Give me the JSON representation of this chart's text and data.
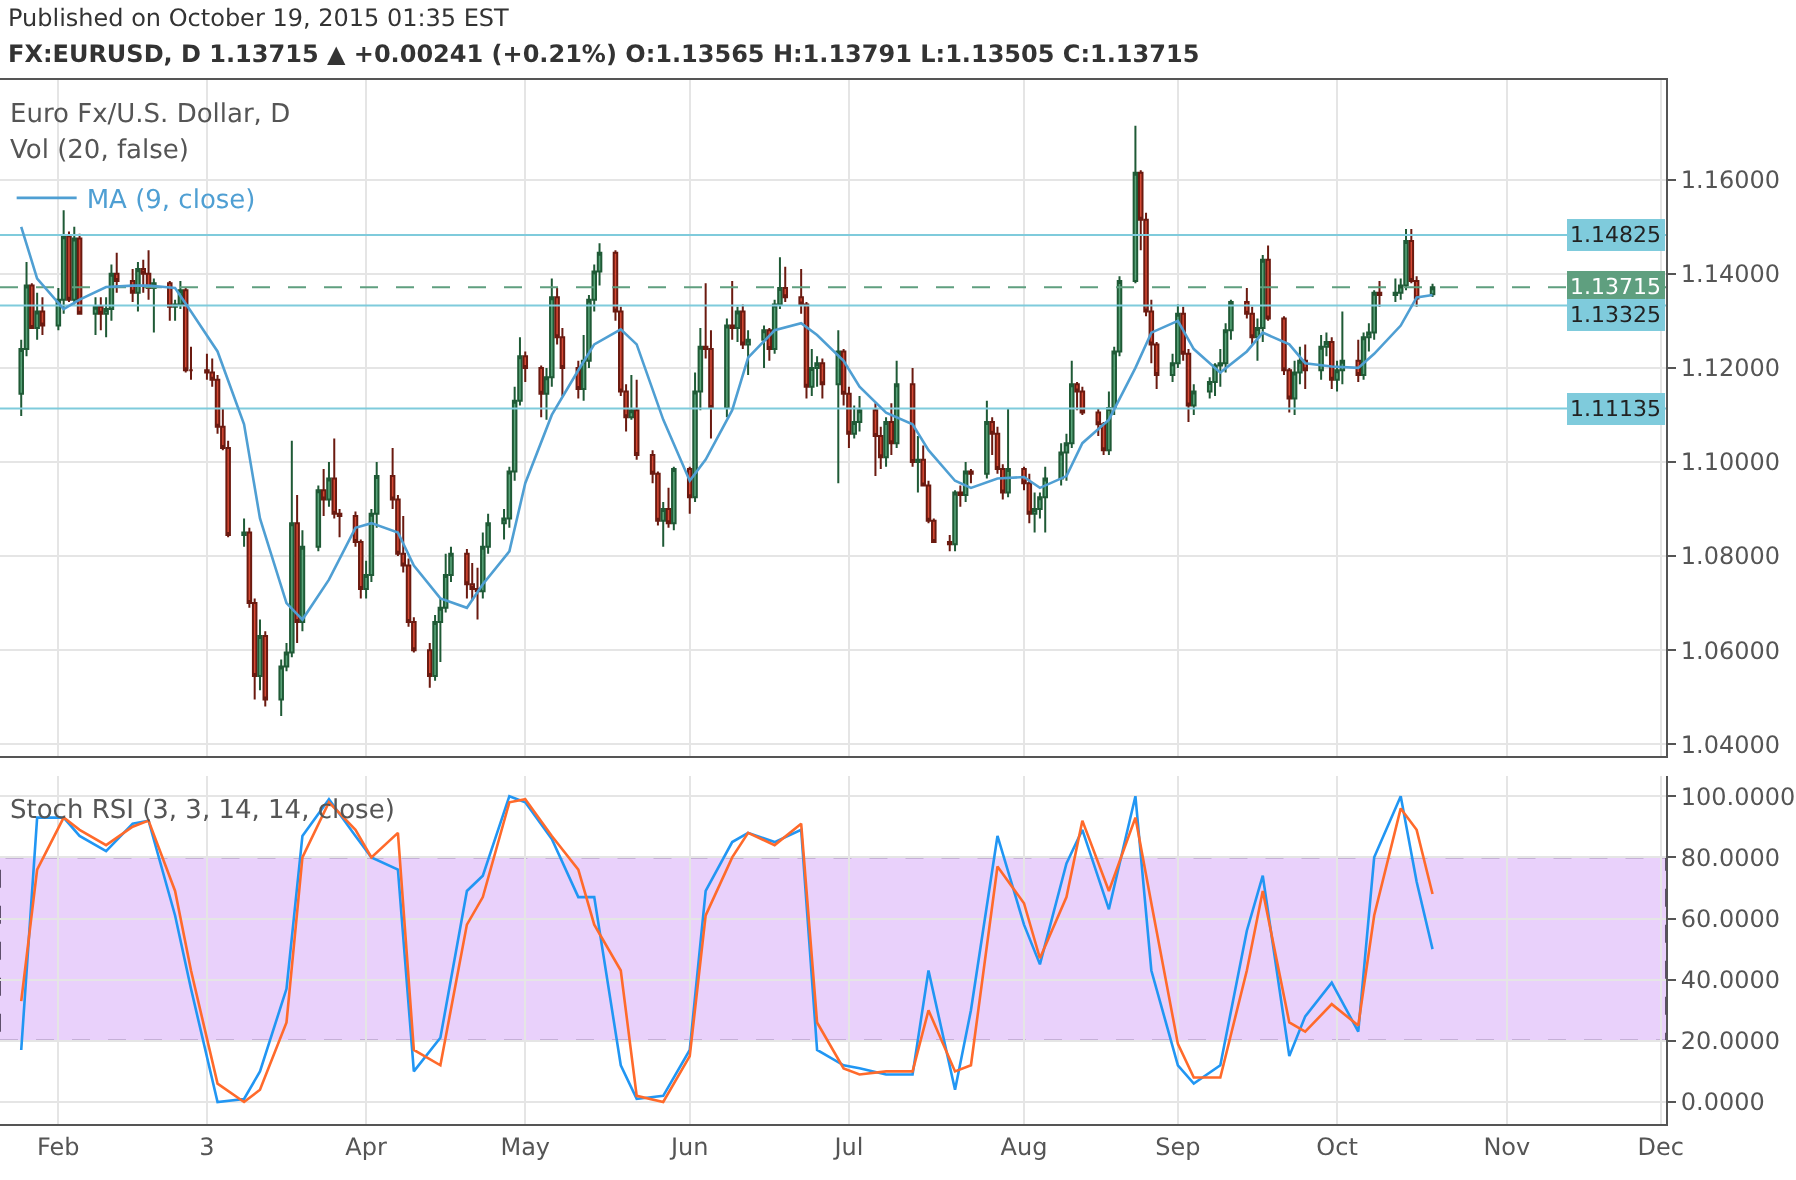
{
  "chart_data": [
    {
      "type": "candlestick",
      "title": "Published on October 19, 2015 01:35 EST",
      "subtitle": "FX:EURUSD, D 1.13715 ▲ +0.00241 (+0.21%) O:1.13565 H:1.13791 L:1.13505 C:1.13715",
      "annotations": [
        "Euro Fx/U.S. Dollar, D",
        "Vol (20, false)"
      ],
      "x": [
        "2015-01-26",
        "2015-01-27",
        "2015-01-28",
        "2015-01-29",
        "2015-01-30",
        "2015-02-02",
        "2015-02-03",
        "2015-02-04",
        "2015-02-05",
        "2015-02-06",
        "2015-02-09",
        "2015-02-10",
        "2015-02-11",
        "2015-02-12",
        "2015-02-13",
        "2015-02-16",
        "2015-02-17",
        "2015-02-18",
        "2015-02-19",
        "2015-02-20",
        "2015-02-23",
        "2015-02-24",
        "2015-02-25",
        "2015-02-26",
        "2015-02-27",
        "2015-03-02",
        "2015-03-03",
        "2015-03-04",
        "2015-03-05",
        "2015-03-06",
        "2015-03-09",
        "2015-03-10",
        "2015-03-11",
        "2015-03-12",
        "2015-03-13",
        "2015-03-16",
        "2015-03-17",
        "2015-03-18",
        "2015-03-19",
        "2015-03-20",
        "2015-03-23",
        "2015-03-24",
        "2015-03-25",
        "2015-03-26",
        "2015-03-27",
        "2015-03-30",
        "2015-03-31",
        "2015-04-01",
        "2015-04-02",
        "2015-04-03",
        "2015-04-06",
        "2015-04-07",
        "2015-04-08",
        "2015-04-09",
        "2015-04-10",
        "2015-04-13",
        "2015-04-14",
        "2015-04-15",
        "2015-04-16",
        "2015-04-17",
        "2015-04-20",
        "2015-04-21",
        "2015-04-22",
        "2015-04-23",
        "2015-04-24",
        "2015-04-27",
        "2015-04-28",
        "2015-04-29",
        "2015-04-30",
        "2015-05-01",
        "2015-05-04",
        "2015-05-05",
        "2015-05-06",
        "2015-05-07",
        "2015-05-08",
        "2015-05-11",
        "2015-05-12",
        "2015-05-13",
        "2015-05-14",
        "2015-05-15",
        "2015-05-18",
        "2015-05-19",
        "2015-05-20",
        "2015-05-21",
        "2015-05-22",
        "2015-05-25",
        "2015-05-26",
        "2015-05-27",
        "2015-05-28",
        "2015-05-29",
        "2015-06-01",
        "2015-06-02",
        "2015-06-03",
        "2015-06-04",
        "2015-06-05",
        "2015-06-08",
        "2015-06-09",
        "2015-06-10",
        "2015-06-11",
        "2015-06-12",
        "2015-06-15",
        "2015-06-16",
        "2015-06-17",
        "2015-06-18",
        "2015-06-19",
        "2015-06-22",
        "2015-06-23",
        "2015-06-24",
        "2015-06-25",
        "2015-06-26",
        "2015-06-29",
        "2015-06-30",
        "2015-07-01",
        "2015-07-02",
        "2015-07-03",
        "2015-07-06",
        "2015-07-07",
        "2015-07-08",
        "2015-07-09",
        "2015-07-10",
        "2015-07-13",
        "2015-07-14",
        "2015-07-15",
        "2015-07-16",
        "2015-07-17",
        "2015-07-20",
        "2015-07-21",
        "2015-07-22",
        "2015-07-23",
        "2015-07-24",
        "2015-07-27",
        "2015-07-28",
        "2015-07-29",
        "2015-07-30",
        "2015-07-31",
        "2015-08-03",
        "2015-08-04",
        "2015-08-05",
        "2015-08-06",
        "2015-08-07",
        "2015-08-10",
        "2015-08-11",
        "2015-08-12",
        "2015-08-13",
        "2015-08-14",
        "2015-08-17",
        "2015-08-18",
        "2015-08-19",
        "2015-08-20",
        "2015-08-21",
        "2015-08-24",
        "2015-08-25",
        "2015-08-26",
        "2015-08-27",
        "2015-08-28",
        "2015-08-31",
        "2015-09-01",
        "2015-09-02",
        "2015-09-03",
        "2015-09-04",
        "2015-09-07",
        "2015-09-08",
        "2015-09-09",
        "2015-09-10",
        "2015-09-11",
        "2015-09-14",
        "2015-09-15",
        "2015-09-16",
        "2015-09-17",
        "2015-09-18",
        "2015-09-21",
        "2015-09-22",
        "2015-09-23",
        "2015-09-24",
        "2015-09-25",
        "2015-09-28",
        "2015-09-29",
        "2015-09-30",
        "2015-10-01",
        "2015-10-02",
        "2015-10-05",
        "2015-10-06",
        "2015-10-07",
        "2015-10-08",
        "2015-10-09",
        "2015-10-12",
        "2015-10-13",
        "2015-10-14",
        "2015-10-15",
        "2015-10-16",
        "2015-10-19"
      ],
      "ohlc": [
        [
          1.1145,
          1.126,
          1.1098,
          1.124
        ],
        [
          1.124,
          1.1425,
          1.1225,
          1.1375
        ],
        [
          1.1375,
          1.138,
          1.1285,
          1.1285
        ],
        [
          1.1285,
          1.136,
          1.126,
          1.132
        ],
        [
          1.132,
          1.135,
          1.127,
          1.129
        ],
        [
          1.129,
          1.137,
          1.128,
          1.1345
        ],
        [
          1.1345,
          1.1535,
          1.1315,
          1.148
        ],
        [
          1.148,
          1.149,
          1.134,
          1.1345
        ],
        [
          1.1345,
          1.15,
          1.1335,
          1.1475
        ],
        [
          1.1475,
          1.1485,
          1.1315,
          1.1315
        ],
        [
          1.1315,
          1.135,
          1.127,
          1.133
        ],
        [
          1.133,
          1.135,
          1.128,
          1.1315
        ],
        [
          1.1315,
          1.135,
          1.1265,
          1.1325
        ],
        [
          1.1325,
          1.142,
          1.13,
          1.14
        ],
        [
          1.14,
          1.1445,
          1.136,
          1.1385
        ],
        [
          1.1385,
          1.141,
          1.134,
          1.136
        ],
        [
          1.136,
          1.1425,
          1.132,
          1.141
        ],
        [
          1.141,
          1.143,
          1.136,
          1.14
        ],
        [
          1.14,
          1.145,
          1.1345,
          1.137
        ],
        [
          1.137,
          1.139,
          1.1275,
          1.138
        ],
        [
          1.138,
          1.1385,
          1.13,
          1.133
        ],
        [
          1.133,
          1.1345,
          1.13,
          1.1335
        ],
        [
          1.1335,
          1.1385,
          1.1325,
          1.1365
        ],
        [
          1.1365,
          1.137,
          1.119,
          1.1195
        ],
        [
          1.1195,
          1.1245,
          1.1175,
          1.1195
        ],
        [
          1.1195,
          1.123,
          1.1175,
          1.119
        ],
        [
          1.119,
          1.122,
          1.116,
          1.1175
        ],
        [
          1.1175,
          1.1185,
          1.106,
          1.1075
        ],
        [
          1.1075,
          1.1115,
          1.1025,
          1.103
        ],
        [
          1.103,
          1.1045,
          1.084,
          1.0845
        ],
        [
          1.0845,
          1.088,
          1.082,
          1.085
        ],
        [
          1.085,
          1.086,
          1.069,
          1.07
        ],
        [
          1.07,
          1.071,
          1.0495,
          1.0545
        ],
        [
          1.0545,
          1.0665,
          1.0515,
          1.063
        ],
        [
          1.063,
          1.064,
          1.048,
          1.0495
        ],
        [
          1.0495,
          1.058,
          1.046,
          1.0565
        ],
        [
          1.0565,
          1.0615,
          1.0555,
          1.0595
        ],
        [
          1.0595,
          1.1045,
          1.0585,
          1.087
        ],
        [
          1.087,
          1.093,
          1.0615,
          1.066
        ],
        [
          1.066,
          1.0855,
          1.064,
          1.082
        ],
        [
          1.082,
          1.095,
          1.081,
          1.094
        ],
        [
          1.094,
          1.0985,
          1.0885,
          1.092
        ],
        [
          1.092,
          1.1,
          1.0905,
          1.0965
        ],
        [
          1.0965,
          1.105,
          1.088,
          1.089
        ],
        [
          1.089,
          1.09,
          1.084,
          1.0885
        ],
        [
          1.0885,
          1.0895,
          1.082,
          1.083
        ],
        [
          1.083,
          1.0835,
          1.071,
          1.073
        ],
        [
          1.073,
          1.079,
          1.071,
          1.076
        ],
        [
          1.076,
          1.09,
          1.0745,
          1.089
        ],
        [
          1.089,
          1.1,
          1.086,
          1.097
        ],
        [
          1.097,
          1.103,
          1.09,
          1.092
        ],
        [
          1.092,
          1.093,
          1.08,
          1.0805
        ],
        [
          1.0805,
          1.0885,
          1.0765,
          1.078
        ],
        [
          1.078,
          1.0795,
          1.065,
          1.066
        ],
        [
          1.066,
          1.067,
          1.0595,
          1.06
        ],
        [
          1.06,
          1.0615,
          1.052,
          1.0545
        ],
        [
          1.0545,
          1.0675,
          1.0535,
          1.066
        ],
        [
          1.066,
          1.071,
          1.0575,
          1.069
        ],
        [
          1.069,
          1.0805,
          1.068,
          1.076
        ],
        [
          1.076,
          1.082,
          1.0745,
          1.0805
        ],
        [
          1.0805,
          1.0815,
          1.071,
          1.074
        ],
        [
          1.074,
          1.0785,
          1.0705,
          1.073
        ],
        [
          1.073,
          1.0775,
          1.0665,
          1.0725
        ],
        [
          1.0725,
          1.085,
          1.071,
          1.082
        ],
        [
          1.082,
          1.089,
          1.0805,
          1.087
        ],
        [
          1.087,
          1.09,
          1.0835,
          1.088
        ],
        [
          1.088,
          1.099,
          1.086,
          1.098
        ],
        [
          1.098,
          1.116,
          1.096,
          1.113
        ],
        [
          1.113,
          1.1265,
          1.112,
          1.1225
        ],
        [
          1.1225,
          1.1235,
          1.117,
          1.12
        ],
        [
          1.12,
          1.1205,
          1.1095,
          1.1145
        ],
        [
          1.1145,
          1.12,
          1.109,
          1.118
        ],
        [
          1.118,
          1.139,
          1.116,
          1.135
        ],
        [
          1.135,
          1.137,
          1.125,
          1.1265
        ],
        [
          1.1265,
          1.1285,
          1.114,
          1.12
        ],
        [
          1.12,
          1.1215,
          1.1135,
          1.1155
        ],
        [
          1.1155,
          1.127,
          1.113,
          1.1215
        ],
        [
          1.1215,
          1.1355,
          1.12,
          1.1345
        ],
        [
          1.1345,
          1.142,
          1.132,
          1.1405
        ],
        [
          1.1405,
          1.1465,
          1.1375,
          1.1445
        ],
        [
          1.1445,
          1.145,
          1.13,
          1.132
        ],
        [
          1.132,
          1.133,
          1.114,
          1.115
        ],
        [
          1.115,
          1.1165,
          1.1065,
          1.1095
        ],
        [
          1.1095,
          1.1185,
          1.109,
          1.111
        ],
        [
          1.111,
          1.1175,
          1.1005,
          1.1015
        ],
        [
          1.1015,
          1.1025,
          1.0955,
          1.0975
        ],
        [
          1.0975,
          1.098,
          1.0865,
          1.0875
        ],
        [
          1.0875,
          1.0915,
          1.082,
          1.09
        ],
        [
          1.09,
          1.0945,
          1.086,
          1.087
        ],
        [
          1.087,
          1.099,
          1.0855,
          1.0985
        ],
        [
          1.0985,
          1.099,
          1.089,
          1.0925
        ],
        [
          1.0925,
          1.119,
          1.0915,
          1.115
        ],
        [
          1.115,
          1.1285,
          1.111,
          1.1245
        ],
        [
          1.1245,
          1.138,
          1.122,
          1.124
        ],
        [
          1.124,
          1.128,
          1.105,
          1.1115
        ],
        [
          1.1115,
          1.1305,
          1.1095,
          1.129
        ],
        [
          1.129,
          1.1385,
          1.126,
          1.1285
        ],
        [
          1.1285,
          1.133,
          1.1255,
          1.132
        ],
        [
          1.132,
          1.1335,
          1.124,
          1.125
        ],
        [
          1.125,
          1.128,
          1.1185,
          1.126
        ],
        [
          1.126,
          1.129,
          1.12,
          1.128
        ],
        [
          1.128,
          1.1285,
          1.1215,
          1.124
        ],
        [
          1.124,
          1.1345,
          1.123,
          1.1335
        ],
        [
          1.1335,
          1.1435,
          1.1325,
          1.137
        ],
        [
          1.137,
          1.1415,
          1.134,
          1.135
        ],
        [
          1.135,
          1.141,
          1.1315,
          1.1335
        ],
        [
          1.1335,
          1.134,
          1.1135,
          1.116
        ],
        [
          1.116,
          1.124,
          1.114,
          1.12
        ],
        [
          1.12,
          1.1225,
          1.116,
          1.121
        ],
        [
          1.121,
          1.122,
          1.1135,
          1.1165
        ],
        [
          1.1165,
          1.128,
          1.0955,
          1.1235
        ],
        [
          1.1235,
          1.124,
          1.112,
          1.1145
        ],
        [
          1.1145,
          1.116,
          1.103,
          1.106
        ],
        [
          1.106,
          1.112,
          1.105,
          1.1085
        ],
        [
          1.1085,
          1.114,
          1.1065,
          1.111
        ],
        [
          1.111,
          1.1125,
          1.097,
          1.1055
        ],
        [
          1.1055,
          1.1075,
          1.0985,
          1.101
        ],
        [
          1.101,
          1.1095,
          1.099,
          1.1085
        ],
        [
          1.1085,
          1.1125,
          1.1015,
          1.104
        ],
        [
          1.104,
          1.1215,
          1.103,
          1.1165
        ],
        [
          1.1165,
          1.12,
          1.099,
          1.1
        ],
        [
          1.1,
          1.1055,
          1.0935,
          1.1005
        ],
        [
          1.1005,
          1.1035,
          1.095,
          1.095
        ],
        [
          1.095,
          1.096,
          1.087,
          1.0875
        ],
        [
          1.0875,
          1.088,
          1.083,
          1.083
        ],
        [
          1.083,
          1.0845,
          1.081,
          1.0825
        ],
        [
          1.0825,
          1.094,
          1.081,
          1.0935
        ],
        [
          1.0935,
          1.095,
          1.0905,
          1.093
        ],
        [
          1.093,
          1.1,
          1.0915,
          1.098
        ],
        [
          1.098,
          1.0985,
          1.0955,
          1.0975
        ],
        [
          1.0975,
          1.113,
          1.0965,
          1.1085
        ],
        [
          1.1085,
          1.1095,
          1.1015,
          1.106
        ],
        [
          1.106,
          1.1075,
          1.0975,
          1.0985
        ],
        [
          1.0985,
          1.0995,
          1.092,
          1.0935
        ],
        [
          1.0935,
          1.1115,
          1.0925,
          1.0985
        ],
        [
          1.0985,
          1.099,
          1.094,
          1.0955
        ],
        [
          1.0955,
          1.0975,
          1.087,
          1.089
        ],
        [
          1.089,
          1.0935,
          1.085,
          1.09
        ],
        [
          1.09,
          1.0935,
          1.088,
          1.0925
        ],
        [
          1.0925,
          1.099,
          1.085,
          1.0965
        ],
        [
          1.0965,
          1.104,
          1.095,
          1.102
        ],
        [
          1.102,
          1.106,
          1.096,
          1.104
        ],
        [
          1.104,
          1.1215,
          1.103,
          1.1165
        ],
        [
          1.1165,
          1.117,
          1.111,
          1.115
        ],
        [
          1.115,
          1.116,
          1.11,
          1.1105
        ],
        [
          1.1105,
          1.1115,
          1.1055,
          1.108
        ],
        [
          1.108,
          1.1085,
          1.1015,
          1.1025
        ],
        [
          1.1025,
          1.115,
          1.1015,
          1.1115
        ],
        [
          1.1115,
          1.1245,
          1.11,
          1.1235
        ],
        [
          1.1235,
          1.1395,
          1.1225,
          1.1385
        ],
        [
          1.1385,
          1.1715,
          1.138,
          1.1615
        ],
        [
          1.1615,
          1.162,
          1.145,
          1.1515
        ],
        [
          1.1515,
          1.153,
          1.131,
          1.132
        ],
        [
          1.132,
          1.1345,
          1.121,
          1.125
        ],
        [
          1.125,
          1.1255,
          1.1155,
          1.1185
        ],
        [
          1.1185,
          1.123,
          1.117,
          1.121
        ],
        [
          1.121,
          1.1335,
          1.12,
          1.1315
        ],
        [
          1.1315,
          1.133,
          1.1215,
          1.123
        ],
        [
          1.123,
          1.124,
          1.1085,
          1.112
        ],
        [
          1.112,
          1.1165,
          1.11,
          1.115
        ],
        [
          1.115,
          1.118,
          1.1135,
          1.117
        ],
        [
          1.117,
          1.121,
          1.114,
          1.1205
        ],
        [
          1.1205,
          1.124,
          1.116,
          1.121
        ],
        [
          1.121,
          1.1295,
          1.119,
          1.128
        ],
        [
          1.128,
          1.1345,
          1.126,
          1.134
        ],
        [
          1.134,
          1.137,
          1.1305,
          1.1315
        ],
        [
          1.1315,
          1.133,
          1.125,
          1.1265
        ],
        [
          1.1265,
          1.1305,
          1.1215,
          1.1285
        ],
        [
          1.1285,
          1.144,
          1.1255,
          1.143
        ],
        [
          1.143,
          1.146,
          1.13,
          1.1305
        ],
        [
          1.1305,
          1.131,
          1.1185,
          1.1195
        ],
        [
          1.1195,
          1.12,
          1.1105,
          1.1135
        ],
        [
          1.1135,
          1.1215,
          1.11,
          1.119
        ],
        [
          1.119,
          1.1245,
          1.1165,
          1.1215
        ],
        [
          1.1215,
          1.125,
          1.1155,
          1.1195
        ],
        [
          1.1195,
          1.127,
          1.1175,
          1.1245
        ],
        [
          1.1245,
          1.1275,
          1.1225,
          1.1255
        ],
        [
          1.1255,
          1.1265,
          1.1155,
          1.1175
        ],
        [
          1.1175,
          1.1215,
          1.115,
          1.1195
        ],
        [
          1.1195,
          1.132,
          1.1165,
          1.1215
        ],
        [
          1.1215,
          1.126,
          1.117,
          1.1185
        ],
        [
          1.1185,
          1.1275,
          1.1175,
          1.1265
        ],
        [
          1.1265,
          1.1295,
          1.1235,
          1.1275
        ],
        [
          1.1275,
          1.1365,
          1.126,
          1.136
        ],
        [
          1.136,
          1.1385,
          1.133,
          1.1355
        ],
        [
          1.1355,
          1.139,
          1.134,
          1.136
        ],
        [
          1.136,
          1.139,
          1.1345,
          1.1375
        ],
        [
          1.1375,
          1.1495,
          1.1365,
          1.147
        ],
        [
          1.147,
          1.1495,
          1.138,
          1.1385
        ],
        [
          1.1385,
          1.1395,
          1.133,
          1.13474
        ],
        [
          1.13565,
          1.13791,
          1.13505,
          1.13715
        ]
      ],
      "series": [
        {
          "type": "line",
          "name": "MA (9, close)",
          "color": "#4f9fd3",
          "x": [
            "2015-01-26",
            "2015-01-29",
            "2015-02-03",
            "2015-02-06",
            "2015-02-11",
            "2015-02-16",
            "2015-02-19",
            "2015-02-24",
            "2015-02-27",
            "2015-03-04",
            "2015-03-09",
            "2015-03-12",
            "2015-03-17",
            "2015-03-20",
            "2015-03-25",
            "2015-03-30",
            "2015-04-02",
            "2015-04-07",
            "2015-04-10",
            "2015-04-15",
            "2015-04-20",
            "2015-04-23",
            "2015-04-28",
            "2015-05-01",
            "2015-05-06",
            "2015-05-11",
            "2015-05-14",
            "2015-05-19",
            "2015-05-22",
            "2015-05-27",
            "2015-06-01",
            "2015-06-04",
            "2015-06-09",
            "2015-06-12",
            "2015-06-17",
            "2015-06-22",
            "2015-06-25",
            "2015-06-30",
            "2015-07-03",
            "2015-07-08",
            "2015-07-13",
            "2015-07-16",
            "2015-07-21",
            "2015-07-24",
            "2015-07-29",
            "2015-08-03",
            "2015-08-06",
            "2015-08-11",
            "2015-08-14",
            "2015-08-19",
            "2015-08-24",
            "2015-08-27",
            "2015-09-01",
            "2015-09-04",
            "2015-09-09",
            "2015-09-14",
            "2015-09-17",
            "2015-09-22",
            "2015-09-25",
            "2015-09-30",
            "2015-10-05",
            "2015-10-08",
            "2015-10-13",
            "2015-10-16",
            "2015-10-19"
          ],
          "values": [
            1.15,
            1.139,
            1.1325,
            1.1345,
            1.1372,
            1.1375,
            1.1375,
            1.137,
            1.132,
            1.1235,
            1.108,
            1.088,
            1.07,
            1.0665,
            1.075,
            1.086,
            1.087,
            1.085,
            1.078,
            1.071,
            1.069,
            1.074,
            1.081,
            1.0955,
            1.11,
            1.1195,
            1.125,
            1.1282,
            1.125,
            1.109,
            1.096,
            1.1005,
            1.111,
            1.1222,
            1.128,
            1.1295,
            1.127,
            1.1215,
            1.116,
            1.1105,
            1.108,
            1.1025,
            1.096,
            1.0945,
            1.0965,
            1.0968,
            1.0945,
            1.097,
            1.104,
            1.109,
            1.12,
            1.1275,
            1.13,
            1.124,
            1.119,
            1.1235,
            1.1275,
            1.125,
            1.121,
            1.1203,
            1.12,
            1.123,
            1.129,
            1.135,
            1.1355
          ]
        }
      ],
      "xlim": [
        "2015-01-22",
        "2015-12-02"
      ],
      "xticks": [
        {
          "value": "2015-02-02",
          "label": null
        },
        {
          "value": "2015-03-02",
          "label": null
        },
        {
          "value": "2015-04-01",
          "label": null
        },
        {
          "value": "2015-05-01",
          "label": null
        },
        {
          "value": "2015-06-01",
          "label": null
        },
        {
          "value": "2015-07-01",
          "label": null
        },
        {
          "value": "2015-08-03",
          "label": null
        },
        {
          "value": "2015-09-01",
          "label": null
        },
        {
          "value": "2015-10-01",
          "label": null
        },
        {
          "value": "2015-11-02",
          "label": null
        },
        {
          "value": "2015-12-01",
          "label": null
        }
      ],
      "ylim": [
        1.0375,
        1.1812
      ],
      "yticks": [
        {
          "value": 1.04,
          "label": "1.04000"
        },
        {
          "value": 1.06,
          "label": "1.06000"
        },
        {
          "value": 1.08,
          "label": "1.08000"
        },
        {
          "value": 1.1,
          "label": "1.10000"
        },
        {
          "value": 1.12,
          "label": "1.12000"
        },
        {
          "value": 1.14,
          "label": "1.14000"
        },
        {
          "value": 1.16,
          "label": "1.16000"
        }
      ],
      "ref_lines": [
        {
          "axis": "y",
          "value": 1.14825,
          "label": "1.14825",
          "color": "#7fcbdc",
          "line_style": "solid"
        },
        {
          "axis": "y",
          "value": 1.13715,
          "label": "1.13715",
          "color": "#5f9f7f",
          "line_style": "dashed"
        },
        {
          "axis": "y",
          "value": 1.13325,
          "label": "1.13325",
          "color": "#7fcbdc",
          "line_style": "solid"
        },
        {
          "axis": "y",
          "value": 1.11135,
          "label": "1.11135",
          "color": "#7fcbdc",
          "line_style": "solid"
        }
      ],
      "grid": true,
      "legend": "top left",
      "tick_labels": "y"
    },
    {
      "type": "line",
      "title": "Stoch RSI (3, 3, 14, 14, close)",
      "x": [
        "2015-01-26",
        "2015-01-29",
        "2015-02-03",
        "2015-02-06",
        "2015-02-11",
        "2015-02-16",
        "2015-02-19",
        "2015-02-24",
        "2015-02-27",
        "2015-03-04",
        "2015-03-09",
        "2015-03-12",
        "2015-03-17",
        "2015-03-20",
        "2015-03-25",
        "2015-03-30",
        "2015-04-02",
        "2015-04-07",
        "2015-04-10",
        "2015-04-15",
        "2015-04-20",
        "2015-04-23",
        "2015-04-28",
        "2015-05-01",
        "2015-05-06",
        "2015-05-11",
        "2015-05-14",
        "2015-05-19",
        "2015-05-22",
        "2015-05-27",
        "2015-06-01",
        "2015-06-04",
        "2015-06-09",
        "2015-06-12",
        "2015-06-17",
        "2015-06-22",
        "2015-06-25",
        "2015-06-30",
        "2015-07-03",
        "2015-07-08",
        "2015-07-13",
        "2015-07-16",
        "2015-07-21",
        "2015-07-24",
        "2015-07-29",
        "2015-08-03",
        "2015-08-06",
        "2015-08-11",
        "2015-08-14",
        "2015-08-19",
        "2015-08-24",
        "2015-08-27",
        "2015-09-01",
        "2015-09-04",
        "2015-09-09",
        "2015-09-14",
        "2015-09-17",
        "2015-09-22",
        "2015-09-25",
        "2015-09-30",
        "2015-10-05",
        "2015-10-08",
        "2015-10-13",
        "2015-10-16",
        "2015-10-19"
      ],
      "series": [
        {
          "color": "#2196f3",
          "values": [
            17,
            93,
            93,
            87,
            82,
            91,
            92,
            61,
            37,
            0,
            1,
            10,
            37,
            87,
            99,
            87,
            80,
            76,
            10,
            21,
            69,
            74,
            100,
            98,
            86,
            67,
            67,
            12,
            1,
            2,
            17,
            69,
            85,
            88,
            85,
            89,
            17,
            12,
            11,
            9,
            9,
            43,
            4,
            30,
            87,
            58,
            45,
            78,
            89,
            63,
            100,
            43,
            12,
            6,
            12,
            56,
            74,
            15,
            28,
            39,
            23,
            80,
            100,
            72,
            50
          ]
        },
        {
          "color": "#ff6a2b",
          "values": [
            33,
            76,
            93,
            89,
            84,
            90,
            92,
            69,
            43,
            6,
            0,
            4,
            26,
            80,
            98,
            89,
            80,
            88,
            17,
            12,
            58,
            67,
            98,
            99,
            87,
            76,
            58,
            43,
            2,
            0,
            15,
            61,
            80,
            88,
            84,
            91,
            26,
            11,
            9,
            10,
            10,
            30,
            10,
            12,
            77,
            65,
            47,
            67,
            92,
            69,
            93,
            65,
            19,
            8,
            8,
            43,
            69,
            26,
            23,
            32,
            25,
            61,
            96,
            89,
            68
          ]
        }
      ],
      "xlim": [
        "2015-01-22",
        "2015-12-02"
      ],
      "xticks": [
        {
          "value": "2015-02-02",
          "label": "Feb"
        },
        {
          "value": "2015-03-02",
          "label": "3"
        },
        {
          "value": "2015-04-01",
          "label": "Apr"
        },
        {
          "value": "2015-05-01",
          "label": "May"
        },
        {
          "value": "2015-06-01",
          "label": "Jun"
        },
        {
          "value": "2015-07-01",
          "label": "Jul"
        },
        {
          "value": "2015-08-03",
          "label": "Aug"
        },
        {
          "value": "2015-09-01",
          "label": "Sep"
        },
        {
          "value": "2015-10-01",
          "label": "Oct"
        },
        {
          "value": "2015-11-02",
          "label": "Nov"
        },
        {
          "value": "2015-12-01",
          "label": "Dec"
        }
      ],
      "ylim": [
        -7.2,
        106.6
      ],
      "yticks": [
        {
          "value": 0,
          "label": "0.0000"
        },
        {
          "value": 20,
          "label": "20.0000"
        },
        {
          "value": 40,
          "label": "40.0000"
        },
        {
          "value": 60,
          "label": "60.0000"
        },
        {
          "value": 80,
          "label": "80.0000"
        },
        {
          "value": 100,
          "label": "100.0000"
        }
      ],
      "bands": [
        {
          "axis": "y",
          "from": 20,
          "to": 80,
          "color": "#e9d1fb"
        }
      ],
      "grid": true
    }
  ]
}
